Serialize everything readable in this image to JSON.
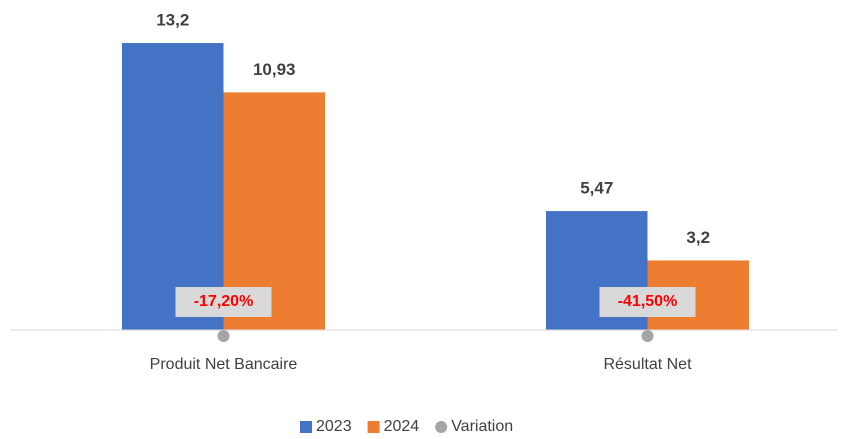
{
  "chart_data": {
    "type": "bar",
    "categories": [
      "Produit Net Bancaire",
      "Résultat Net"
    ],
    "series": [
      {
        "name": "2023",
        "color": "#4472c4",
        "values": [
          13.2,
          5.47
        ],
        "value_labels": [
          "13,2",
          "5,47"
        ]
      },
      {
        "name": "2024",
        "color": "#ed7d31",
        "values": [
          10.93,
          3.2
        ],
        "value_labels": [
          "10,93",
          "3,2"
        ]
      },
      {
        "name": "Variation",
        "color": "#a5a5a5",
        "values": [
          -17.2,
          -41.5
        ],
        "value_labels": [
          "-17,20%",
          "-41,50%"
        ]
      }
    ],
    "ylim": [
      0,
      14
    ],
    "grid": false,
    "legend": "bottom"
  }
}
